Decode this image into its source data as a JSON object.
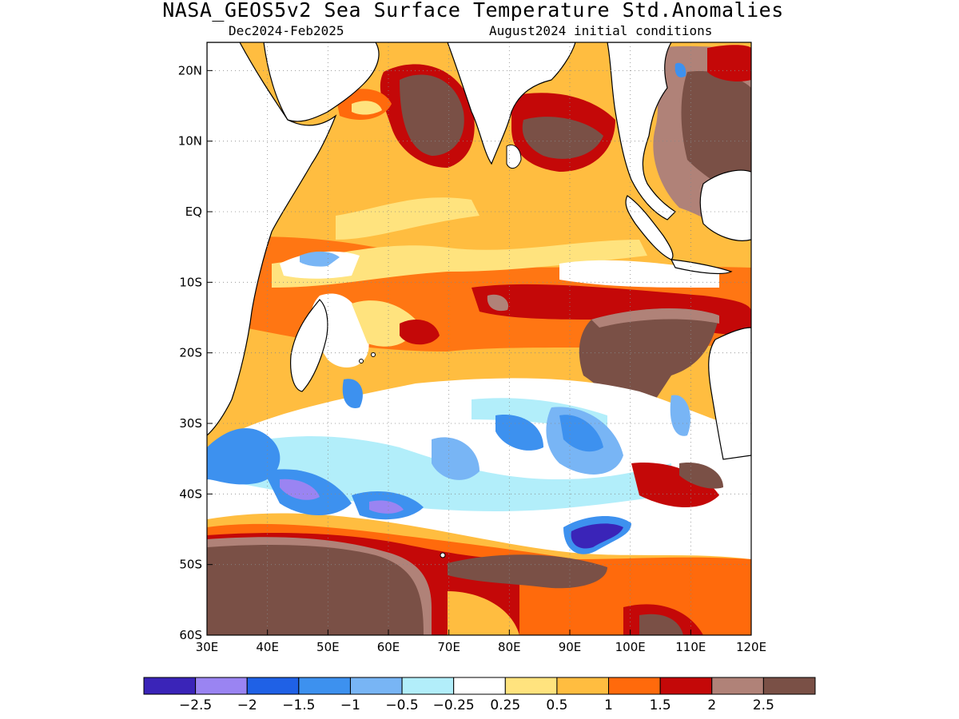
{
  "title": "NASA_GEOS5v2 Sea Surface Temperature Std.Anomalies",
  "subtitle_left": "Dec2024-Feb2025",
  "subtitle_right": "August2024 initial conditions",
  "axes": {
    "x_ticks": [
      "30E",
      "40E",
      "50E",
      "60E",
      "70E",
      "80E",
      "90E",
      "100E",
      "110E",
      "120E"
    ],
    "y_ticks": [
      "20N",
      "10N",
      "EQ",
      "10S",
      "20S",
      "30S",
      "40S",
      "50S",
      "60S"
    ],
    "lon_range": [
      30,
      120
    ],
    "lat_range": [
      -60,
      24
    ],
    "grid": true
  },
  "colorbar": {
    "colors": [
      "#3a24b8",
      "#9a84f2",
      "#1f61e6",
      "#3d91ef",
      "#78b5f5",
      "#b2eefa",
      "#ffffff",
      "#ffe37e",
      "#ffbd40",
      "#ff6a0c",
      "#c40808",
      "#b08278",
      "#7a5046"
    ],
    "labels": [
      "−2.5",
      "−2",
      "−1.5",
      "−1",
      "−0.5",
      "−0.25",
      "0.25",
      "0.5",
      "1",
      "1.5",
      "2",
      "2.5"
    ]
  },
  "regions": [
    {
      "name": "warm-background",
      "level": "1"
    },
    {
      "name": "arabian-sea-anomaly",
      "level": "2.5"
    },
    {
      "name": "bay-of-bengal-anomaly",
      "level": "2.5"
    },
    {
      "name": "southern-ocean-warm-belt",
      "level": "2.5"
    },
    {
      "name": "south-indian-cool-band",
      "level": "-1"
    },
    {
      "name": "southern-cold-core",
      "level": "-2.5"
    }
  ]
}
